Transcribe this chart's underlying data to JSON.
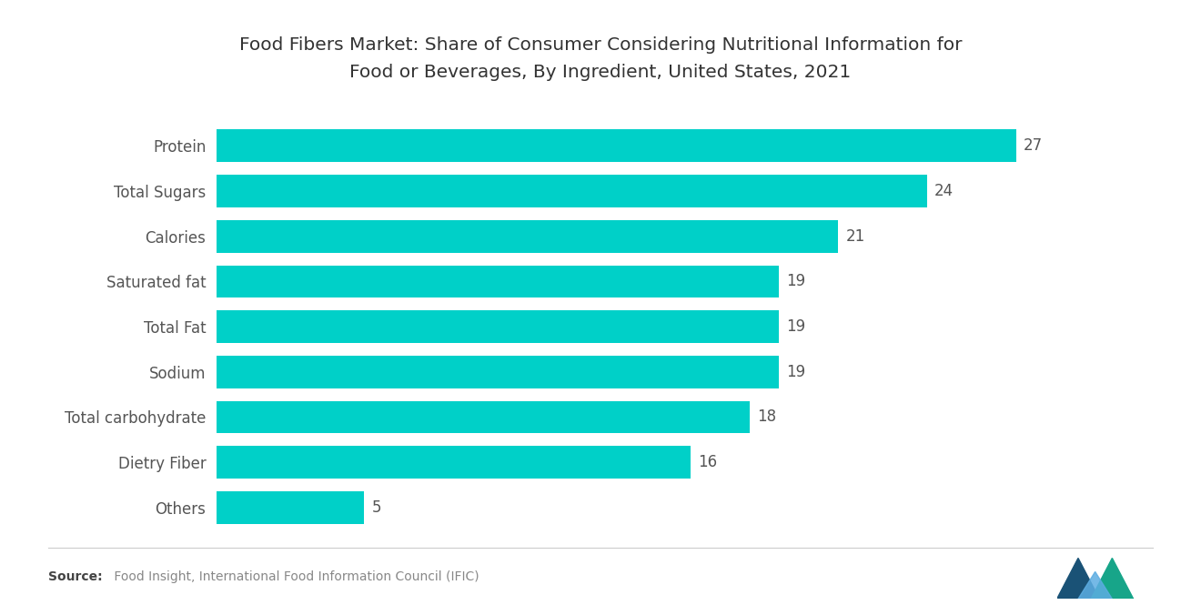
{
  "title_line1": "Food Fibers Market: Share of Consumer Considering Nutritional Information for",
  "title_line2": "Food or Beverages, By Ingredient, United States, 2021",
  "categories": [
    "Protein",
    "Total Sugars",
    "Calories",
    "Saturated fat",
    "Total Fat",
    "Sodium",
    "Total carbohydrate",
    "Dietry Fiber",
    "Others"
  ],
  "values": [
    27,
    24,
    21,
    19,
    19,
    19,
    18,
    16,
    5
  ],
  "bar_color": "#00D0C8",
  "background_color": "#FFFFFF",
  "title_fontsize": 14.5,
  "label_fontsize": 12,
  "value_fontsize": 12,
  "source_bold": "Source:",
  "source_normal": " Food Insight, International Food Information Council (IFIC)",
  "xlim": [
    0,
    30
  ],
  "bar_height": 0.72
}
